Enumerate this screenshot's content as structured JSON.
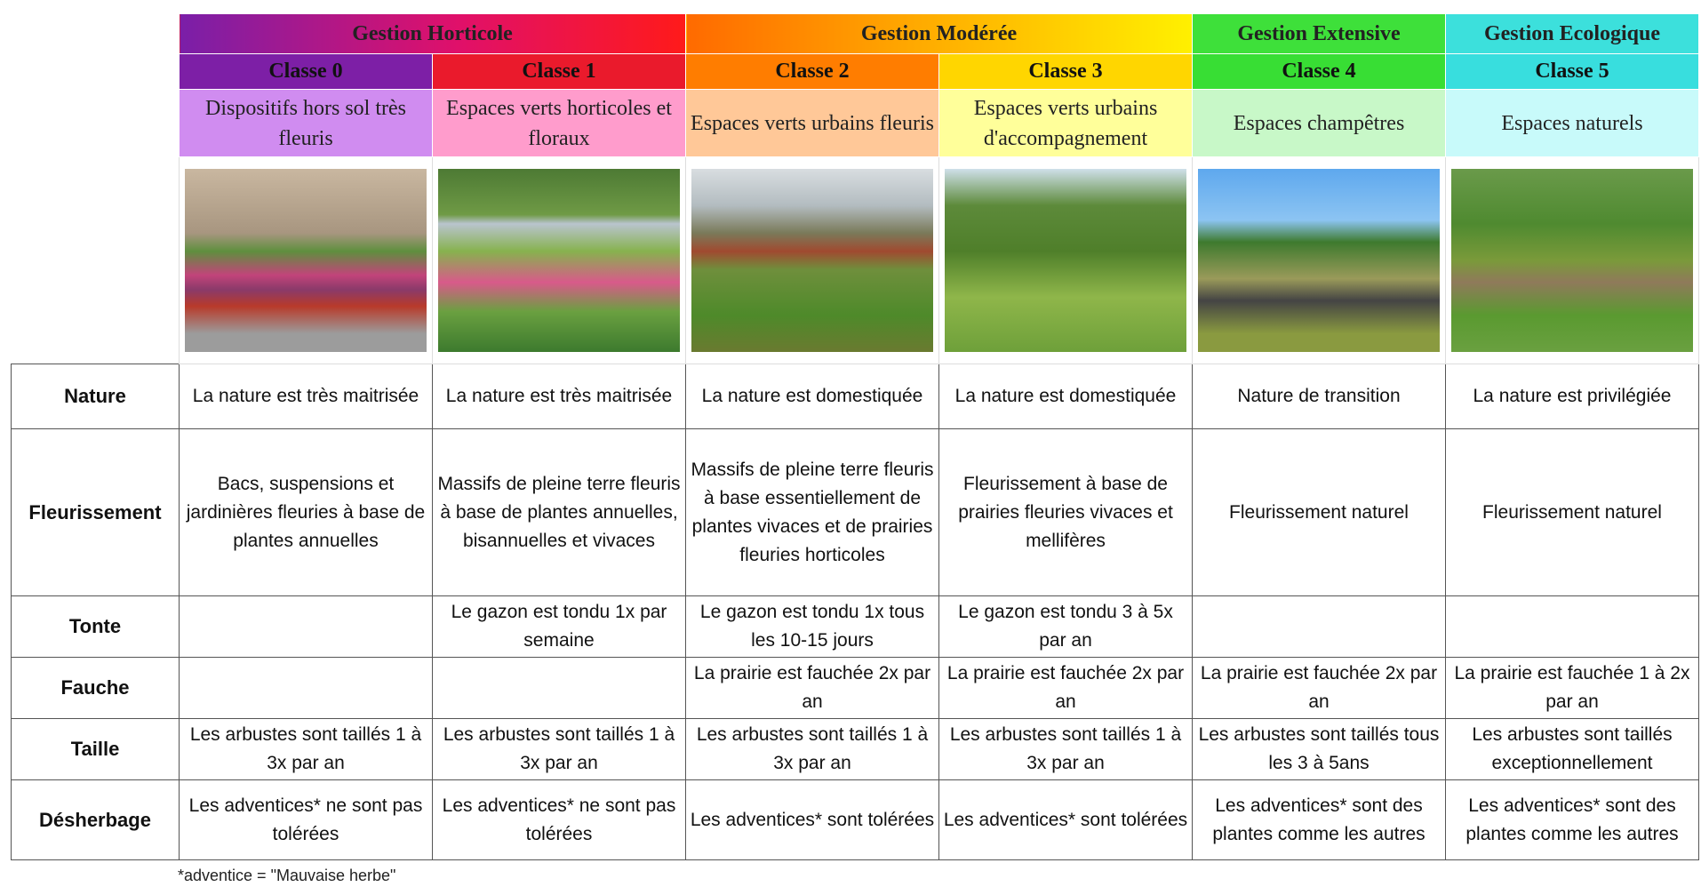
{
  "header": {
    "groups": [
      "Gestion Horticole",
      "Gestion Modérée",
      "Gestion Extensive",
      "Gestion Ecologique"
    ],
    "classes": [
      "Classe 0",
      "Classe 1",
      "Classe 2",
      "Classe 3",
      "Classe 4",
      "Classe 5"
    ],
    "descriptions": [
      "Dispositifs hors sol très fleuris",
      "Espaces verts horticoles et floraux",
      "Espaces verts urbains fleuris",
      "Espaces verts urbains d'accompagnement",
      "Espaces champêtres",
      "Espaces naturels"
    ]
  },
  "table": {
    "row_labels": [
      "Nature",
      "Fleurissement",
      "Tonte",
      "Fauche",
      "Taille",
      "Désherbage"
    ],
    "rows": [
      [
        "La nature est très maitrisée",
        "La nature est très maitrisée",
        "La nature est domestiquée",
        "La nature est domestiquée",
        "Nature de transition",
        "La nature est privilégiée"
      ],
      [
        "Bacs, suspensions et jardinières fleuries à base de plantes annuelles",
        "Massifs de pleine terre fleuris à base de plantes annuelles, bisannuelles et vivaces",
        "Massifs de pleine terre fleuris à base essentiellement de plantes vivaces et de prairies fleuries horticoles",
        "Fleurissement à base de prairies fleuries vivaces et mellifères",
        "Fleurissement naturel",
        "Fleurissement naturel"
      ],
      [
        null,
        "Le gazon est tondu 1x par semaine",
        "Le gazon est tondu 1x tous les 10-15 jours",
        "Le gazon est tondu 3 à 5x par an",
        null,
        null
      ],
      [
        null,
        null,
        "La prairie est fauchée 2x par an",
        "La prairie est fauchée 2x par an",
        "La prairie est fauchée 2x par an",
        "La prairie est fauchée 1 à 2x par an"
      ],
      [
        "Les arbustes sont taillés 1 à 3x par an",
        "Les arbustes sont taillés 1 à 3x par an",
        "Les arbustes sont taillés 1 à 3x par an",
        "Les arbustes sont taillés 1 à 3x par an",
        "Les arbustes sont taillés tous les 3 à 5ans",
        "Les arbustes sont taillés exceptionnellement"
      ],
      [
        "Les adventices* ne sont pas tolérées",
        "Les adventices* ne sont pas tolérées",
        "Les adventices* sont tolérées",
        "Les adventices* sont tolérées",
        "Les adventices* sont des plantes comme les autres",
        "Les adventices* sont des plantes comme les autres"
      ]
    ]
  },
  "footnote": "*adventice = \"Mauvaise herbe\""
}
